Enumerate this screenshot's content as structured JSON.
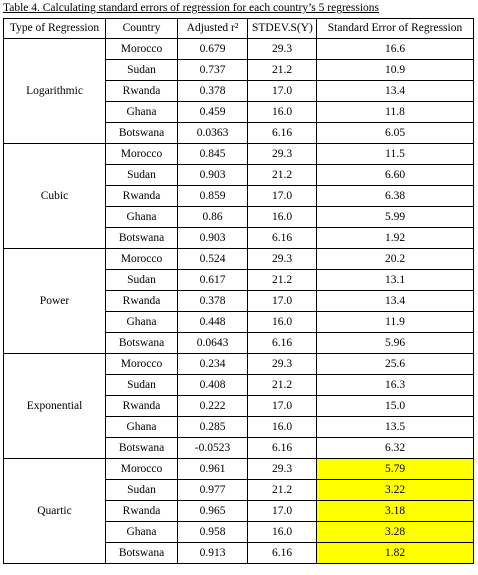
{
  "caption": "Table 4. Calculating standard errors of regression for each country’s 5 regressions",
  "headers": [
    "Type of Regression",
    "Country",
    "Adjusted r²",
    "STDEV.S(Y)",
    "Standard Error of Regression"
  ],
  "highlight_color": "#ffff00",
  "groups": [
    {
      "type": "Logarithmic",
      "highlight": false,
      "rows": [
        {
          "country": "Morocco",
          "r2": "0.679",
          "stdev": "29.3",
          "se": "16.6"
        },
        {
          "country": "Sudan",
          "r2": "0.737",
          "stdev": "21.2",
          "se": "10.9"
        },
        {
          "country": "Rwanda",
          "r2": "0.378",
          "stdev": "17.0",
          "se": "13.4"
        },
        {
          "country": "Ghana",
          "r2": "0.459",
          "stdev": "16.0",
          "se": "11.8"
        },
        {
          "country": "Botswana",
          "r2": "0.0363",
          "stdev": "6.16",
          "se": "6.05"
        }
      ]
    },
    {
      "type": "Cubic",
      "highlight": false,
      "rows": [
        {
          "country": "Morocco",
          "r2": "0.845",
          "stdev": "29.3",
          "se": "11.5"
        },
        {
          "country": "Sudan",
          "r2": "0.903",
          "stdev": "21.2",
          "se": "6.60"
        },
        {
          "country": "Rwanda",
          "r2": "0.859",
          "stdev": "17.0",
          "se": "6.38"
        },
        {
          "country": "Ghana",
          "r2": "0.86",
          "stdev": "16.0",
          "se": "5.99"
        },
        {
          "country": "Botswana",
          "r2": "0.903",
          "stdev": "6.16",
          "se": "1.92"
        }
      ]
    },
    {
      "type": "Power",
      "highlight": false,
      "rows": [
        {
          "country": "Morocco",
          "r2": "0.524",
          "stdev": "29.3",
          "se": "20.2"
        },
        {
          "country": "Sudan",
          "r2": "0.617",
          "stdev": "21.2",
          "se": "13.1"
        },
        {
          "country": "Rwanda",
          "r2": "0.378",
          "stdev": "17.0",
          "se": "13.4"
        },
        {
          "country": "Ghana",
          "r2": "0.448",
          "stdev": "16.0",
          "se": "11.9"
        },
        {
          "country": "Botswana",
          "r2": "0.0643",
          "stdev": "6.16",
          "se": "5.96"
        }
      ]
    },
    {
      "type": "Exponential",
      "highlight": false,
      "rows": [
        {
          "country": "Morocco",
          "r2": "0.234",
          "stdev": "29.3",
          "se": "25.6"
        },
        {
          "country": "Sudan",
          "r2": "0.408",
          "stdev": "21.2",
          "se": "16.3"
        },
        {
          "country": "Rwanda",
          "r2": "0.222",
          "stdev": "17.0",
          "se": "15.0"
        },
        {
          "country": "Ghana",
          "r2": "0.285",
          "stdev": "16.0",
          "se": "13.5"
        },
        {
          "country": "Botswana",
          "r2": "-0.0523",
          "stdev": "6.16",
          "se": "6.32"
        }
      ]
    },
    {
      "type": "Quartic",
      "highlight": true,
      "rows": [
        {
          "country": "Morocco",
          "r2": "0.961",
          "stdev": "29.3",
          "se": "5.79"
        },
        {
          "country": "Sudan",
          "r2": "0.977",
          "stdev": "21.2",
          "se": "3.22"
        },
        {
          "country": "Rwanda",
          "r2": "0.965",
          "stdev": "17.0",
          "se": "3.18"
        },
        {
          "country": "Ghana",
          "r2": "0.958",
          "stdev": "16.0",
          "se": "3.28"
        },
        {
          "country": "Botswana",
          "r2": "0.913",
          "stdev": "6.16",
          "se": "1.82"
        }
      ]
    }
  ]
}
